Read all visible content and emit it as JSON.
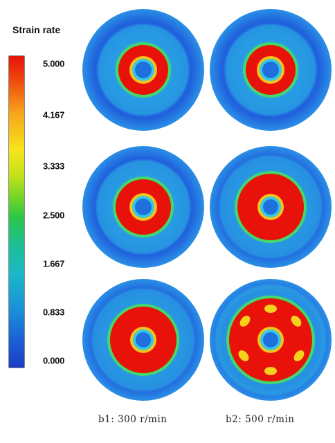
{
  "legend": {
    "title": "Strain rate",
    "ticks": [
      "5.000",
      "4.167",
      "3.333",
      "2.500",
      "1.667",
      "0.833",
      "0.000"
    ]
  },
  "captions": {
    "left": "b1: 300 r/min",
    "right": "b2: 500 r/min"
  },
  "colors": {
    "scale_max": "#e8120a",
    "scale_min": "#1e3ec4"
  }
}
